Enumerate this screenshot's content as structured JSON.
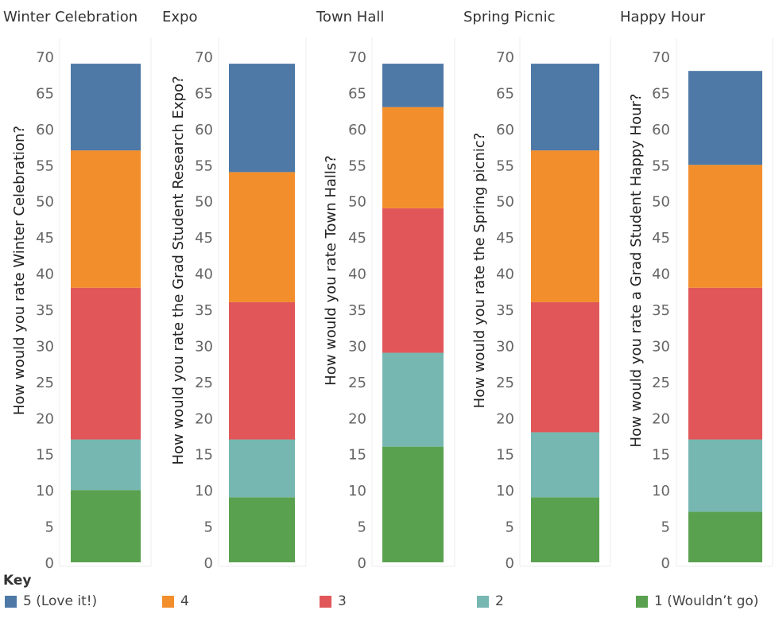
{
  "chart_data": {
    "type": "bar",
    "stacked": true,
    "colors": {
      "5": "#4e79a7",
      "4": "#f28e2b",
      "3": "#e15759",
      "2": "#76b7b2",
      "1": "#59a14f"
    },
    "series_order": [
      "1",
      "2",
      "3",
      "4",
      "5"
    ],
    "panels": [
      {
        "title": "Winter Celebration",
        "ylabel": "How would you rate Winter Celebration?",
        "ylim": [
          0,
          70
        ],
        "ticks": [
          0,
          5,
          10,
          15,
          20,
          25,
          30,
          35,
          40,
          45,
          50,
          55,
          60,
          65,
          70
        ],
        "segments": {
          "1": 10,
          "2": 7,
          "3": 21,
          "4": 19,
          "5": 12
        }
      },
      {
        "title": "Expo",
        "ylabel": "How would you rate the Grad Student Research Expo?",
        "ylim": [
          0,
          70
        ],
        "ticks": [
          0,
          5,
          10,
          15,
          20,
          25,
          30,
          35,
          40,
          45,
          50,
          55,
          60,
          65,
          70
        ],
        "segments": {
          "1": 9,
          "2": 8,
          "3": 19,
          "4": 18,
          "5": 15
        }
      },
      {
        "title": "Town Hall",
        "ylabel": "How would you rate Town Halls?",
        "ylim": [
          0,
          70
        ],
        "ticks": [
          0,
          5,
          10,
          15,
          20,
          25,
          30,
          35,
          40,
          45,
          50,
          55,
          60,
          65,
          70
        ],
        "segments": {
          "1": 16,
          "2": 13,
          "3": 20,
          "4": 14,
          "5": 6
        }
      },
      {
        "title": "Spring Picnic",
        "ylabel": "How would you rate the Spring picnic?",
        "ylim": [
          0,
          70
        ],
        "ticks": [
          0,
          5,
          10,
          15,
          20,
          25,
          30,
          35,
          40,
          45,
          50,
          55,
          60,
          65,
          70
        ],
        "segments": {
          "1": 9,
          "2": 9,
          "3": 18,
          "4": 21,
          "5": 12
        }
      },
      {
        "title": "Happy Hour",
        "ylabel": "How would you rate a Grad Student Happy Hour?",
        "ylim": [
          0,
          70
        ],
        "ticks": [
          0,
          5,
          10,
          15,
          20,
          25,
          30,
          35,
          40,
          45,
          50,
          55,
          60,
          65,
          70
        ],
        "segments": {
          "1": 7,
          "2": 10,
          "3": 21,
          "4": 17,
          "5": 13
        }
      }
    ]
  },
  "legend": {
    "title": "Key",
    "items": [
      {
        "key": "5",
        "label": "5 (Love it!)"
      },
      {
        "key": "4",
        "label": "4"
      },
      {
        "key": "3",
        "label": "3"
      },
      {
        "key": "2",
        "label": "2"
      },
      {
        "key": "1",
        "label": "1 (Wouldn’t go)"
      }
    ]
  }
}
